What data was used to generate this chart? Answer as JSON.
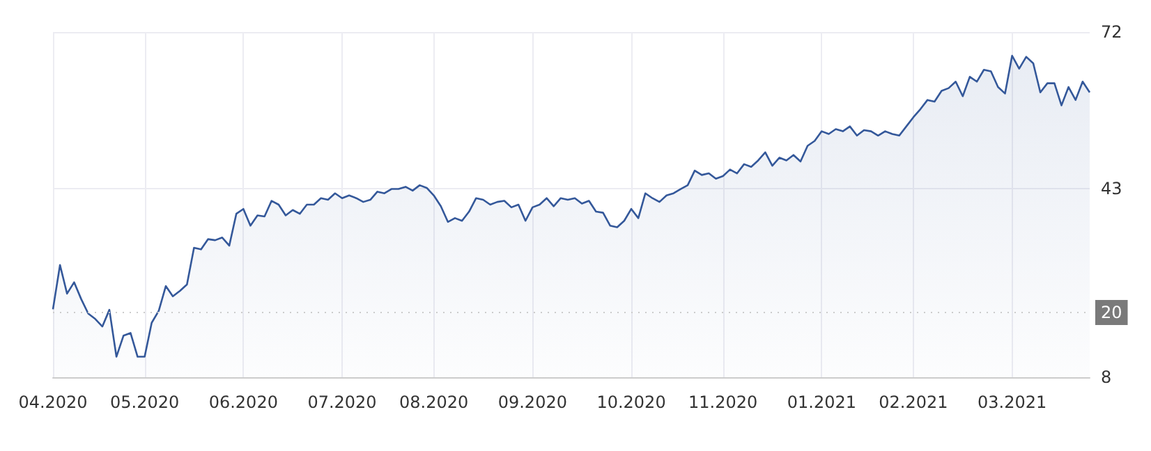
{
  "chart_data": {
    "type": "area",
    "color": "#34589a",
    "categories": [
      "04.2020",
      null,
      null,
      null,
      null,
      null,
      null,
      null,
      null,
      null,
      null,
      null,
      null,
      "05.2020",
      null,
      null,
      null,
      null,
      null,
      null,
      null,
      null,
      null,
      null,
      null,
      null,
      null,
      "06.2020",
      null,
      null,
      null,
      null,
      null,
      null,
      null,
      null,
      null,
      null,
      null,
      null,
      null,
      "07.2020",
      null,
      null,
      null,
      null,
      null,
      null,
      null,
      null,
      null,
      null,
      null,
      null,
      "08.2020",
      null,
      null,
      null,
      null,
      null,
      null,
      null,
      null,
      null,
      null,
      null,
      null,
      null,
      "09.2020",
      null,
      null,
      null,
      null,
      null,
      null,
      null,
      null,
      null,
      null,
      null,
      null,
      null,
      "10.2020",
      null,
      null,
      null,
      null,
      null,
      null,
      null,
      null,
      null,
      null,
      null,
      null,
      "11.2020",
      null,
      null,
      null,
      null,
      null,
      null,
      null,
      null,
      null,
      null,
      null,
      null,
      null,
      "01.2021",
      null,
      null,
      null,
      null,
      null,
      null,
      null,
      null,
      null,
      null,
      null,
      null,
      "02.2021",
      null,
      null,
      null,
      null,
      null,
      null,
      null,
      null,
      null,
      null,
      null,
      null,
      null,
      "03.2021",
      null,
      null,
      null,
      null,
      null,
      null,
      null,
      null,
      null,
      null,
      null
    ],
    "values": [
      20.6,
      28.8,
      23.5,
      25.6,
      22.5,
      19.8,
      18.8,
      17.4,
      20.5,
      11.8,
      15.7,
      16.2,
      11.8,
      11.8,
      18.1,
      20.3,
      24.9,
      23,
      24,
      25.2,
      32,
      31.7,
      33.6,
      33.4,
      33.9,
      32.4,
      38.3,
      39.2,
      36.1,
      38,
      37.8,
      40.7,
      40,
      38,
      39,
      38.3,
      40,
      40,
      41.2,
      40.9,
      42.1,
      41.2,
      41.7,
      41.2,
      40.5,
      40.9,
      42.4,
      42.1,
      42.9,
      42.9,
      43.3,
      42.6,
      43.6,
      43.1,
      41.7,
      39.7,
      36.8,
      37.5,
      37,
      38.7,
      41.2,
      40.9,
      40,
      40.5,
      40.7,
      39.5,
      40,
      37,
      39.5,
      40,
      41.2,
      39.7,
      41.2,
      40.9,
      41.2,
      40.2,
      40.7,
      38.7,
      38.5,
      36.1,
      35.8,
      37,
      39.2,
      37.5,
      42.1,
      41.2,
      40.5,
      41.7,
      42.1,
      42.9,
      43.6,
      46.3,
      45.5,
      45.8,
      44.8,
      45.3,
      46.5,
      45.8,
      47.5,
      47,
      48.2,
      49.7,
      47.2,
      48.7,
      48.2,
      49.2,
      48,
      50.9,
      51.8,
      53.6,
      53.1,
      54,
      53.6,
      54.5,
      52.8,
      53.8,
      53.6,
      52.8,
      53.6,
      53.1,
      52.8,
      54.5,
      56.2,
      57.7,
      59.4,
      59.1,
      61.1,
      61.6,
      62.8,
      60.1,
      63.7,
      62.8,
      65,
      64.7,
      61.8,
      60.6,
      67.6,
      65.2,
      67.4,
      66.2,
      60.8,
      62.5,
      62.5,
      58.4,
      61.8,
      59.4,
      62.8,
      60.8
    ],
    "ylim": [
      8,
      72
    ],
    "yticks": [
      8,
      43,
      72
    ],
    "ref_lines": [
      {
        "axis": "y",
        "value": 20,
        "label": "20",
        "color": "#cccccc",
        "line_style": "dotted"
      }
    ],
    "grid": true,
    "marker": "none"
  }
}
